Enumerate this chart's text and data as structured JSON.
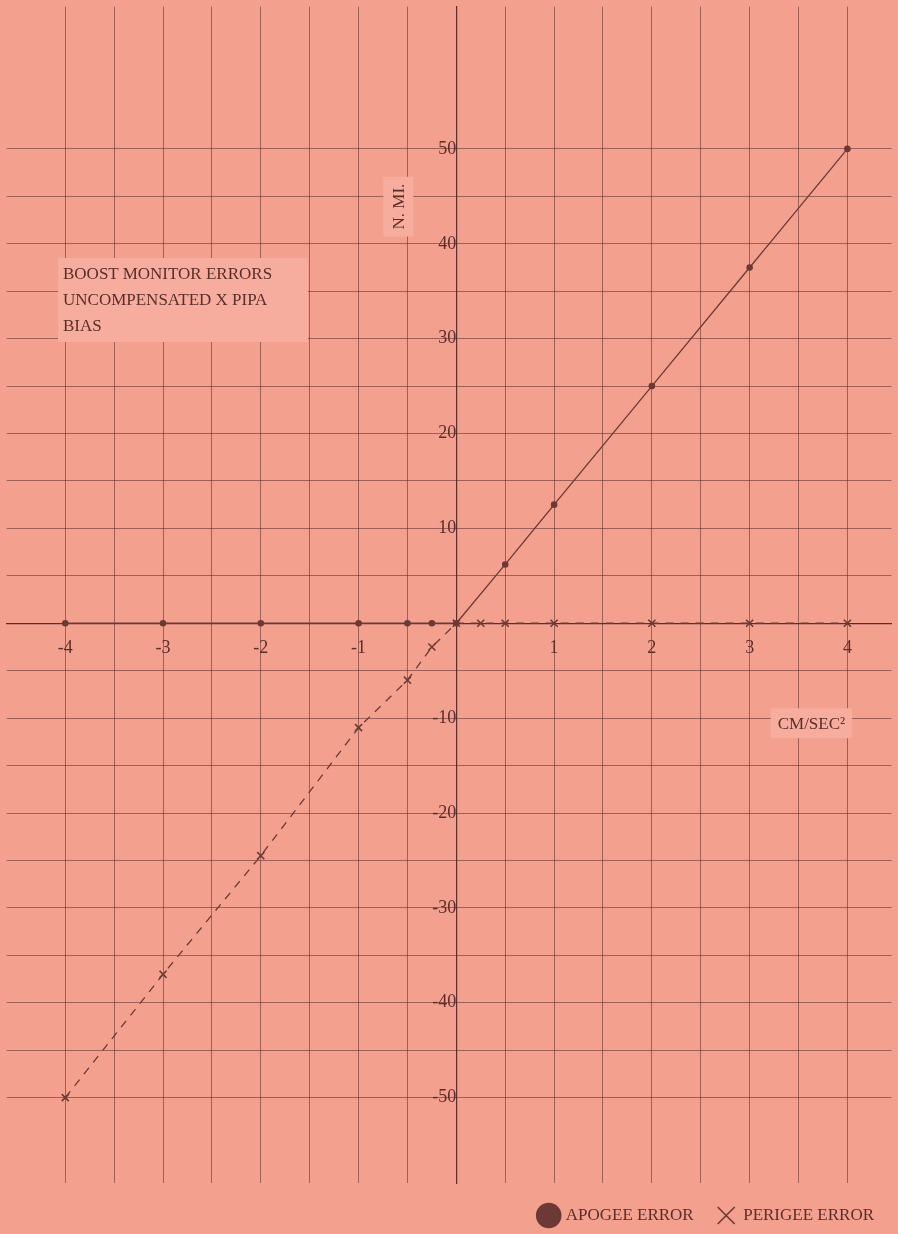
{
  "chart_data": {
    "type": "line",
    "title": "BOOST MONITOR ERRORS UNCOMPENSATED X PIPA BIAS",
    "xlabel": "CM/SEC²",
    "ylabel": "N. MI.",
    "xlim": [
      -4.6,
      4.45
    ],
    "ylim": [
      -59,
      65
    ],
    "xticks": [
      -4,
      {
        "value": -3.5,
        "label": null
      },
      -3,
      {
        "value": -2.5,
        "label": null
      },
      -2,
      {
        "value": -1.5,
        "label": null
      },
      -1,
      {
        "value": -0.5,
        "label": null
      },
      {
        "value": 0,
        "label": null
      },
      {
        "value": 0.5,
        "label": null
      },
      1,
      {
        "value": 1.5,
        "label": null
      },
      2,
      {
        "value": 2.5,
        "label": null
      },
      3,
      {
        "value": 3.5,
        "label": null
      },
      4
    ],
    "yticks": [
      -50,
      {
        "value": -45,
        "label": null
      },
      -40,
      {
        "value": -35,
        "label": null
      },
      -30,
      {
        "value": -25,
        "label": null
      },
      -20,
      {
        "value": -15,
        "label": null
      },
      -10,
      {
        "value": -5,
        "label": null
      },
      {
        "value": 0,
        "label": null
      },
      {
        "value": 5,
        "label": null
      },
      10,
      {
        "value": 15,
        "label": null
      },
      20,
      {
        "value": 25,
        "label": null
      },
      30,
      {
        "value": 35,
        "label": null
      },
      40,
      {
        "value": 45,
        "label": null
      },
      50
    ],
    "grid": true,
    "legend": "bottom right",
    "series": [
      {
        "name": "APOGEE ERROR",
        "color": "#6b3a35",
        "marker": "circle",
        "line_style": "solid",
        "x": [
          -4,
          -3,
          -2,
          -1,
          -0.5,
          -0.25,
          0,
          0.5,
          1,
          2,
          3,
          4
        ],
        "values": [
          0,
          0,
          0,
          0,
          0,
          0,
          0,
          6.2,
          12.5,
          25,
          37.5,
          50
        ]
      },
      {
        "name": "PERIGEE ERROR",
        "color": "#6b3a35",
        "marker": "cross",
        "line_style": "dashed",
        "x": [
          -4,
          -3,
          -2,
          -1,
          -0.5,
          -0.25,
          0,
          0.25,
          0.5,
          1,
          2,
          3,
          4
        ],
        "values": [
          -50,
          -37,
          -24.5,
          -11,
          -6,
          -2.5,
          0,
          0,
          0,
          0,
          0,
          0,
          0
        ]
      }
    ]
  }
}
